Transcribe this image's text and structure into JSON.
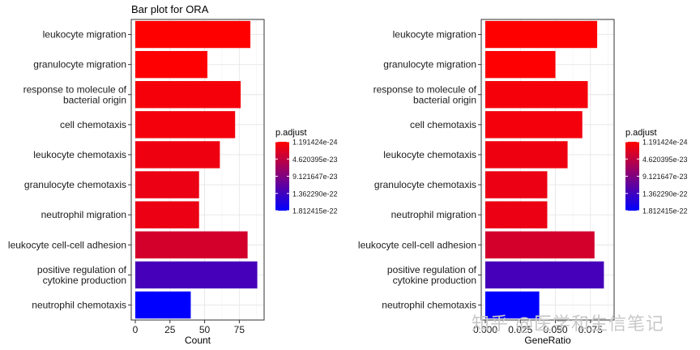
{
  "chart_data": [
    {
      "type": "bar",
      "orientation": "horizontal",
      "title": "Bar plot for ORA",
      "xlabel": "Count",
      "ylabel": "",
      "xlim": [
        0,
        90
      ],
      "xticks": [
        0,
        25,
        50,
        75
      ],
      "xtick_labels": [
        "0",
        "25",
        "50",
        "75"
      ],
      "categories": [
        "leukocyte migration",
        "granulocyte migration",
        "response to molecule of\nbacterial origin",
        "cell chemotaxis",
        "leukocyte chemotaxis",
        "granulocyte chemotaxis",
        "neutrophil migration",
        "leukocyte cell-cell adhesion",
        "positive regulation of\ncytokine production",
        "neutrophil chemotaxis"
      ],
      "values": [
        83,
        52,
        76,
        72,
        61,
        46,
        46,
        81,
        88,
        40
      ],
      "color_values": [
        1.191424e-24,
        2.1e-24,
        8e-24,
        9.5e-24,
        1.25e-23,
        1.5e-23,
        1.5e-23,
        3.2e-23,
        1.32e-22,
        1.812415e-22
      ],
      "legend": {
        "title": "p.adjust",
        "labels": [
          "1.191424e-24",
          "4.620395e-23",
          "9.121647e-23",
          "1.362290e-22",
          "1.812415e-22"
        ],
        "min": 1.191424e-24,
        "max": 1.812415e-22,
        "color_low": "#FF0000",
        "color_high": "#0000FF"
      },
      "grid": true
    },
    {
      "type": "bar",
      "orientation": "horizontal",
      "title": "",
      "xlabel": "GeneRatio",
      "ylabel": "",
      "xlim": [
        0,
        0.089
      ],
      "xticks": [
        0,
        0.025,
        0.05,
        0.075
      ],
      "xtick_labels": [
        "0.000",
        "0.025",
        "0.050",
        "0.075"
      ],
      "categories": [
        "leukocyte migration",
        "granulocyte migration",
        "response to molecule of\nbacterial origin",
        "cell chemotaxis",
        "leukocyte chemotaxis",
        "granulocyte chemotaxis",
        "neutrophil migration",
        "leukocyte cell-cell adhesion",
        "positive regulation of\ncytokine production",
        "neutrophil chemotaxis"
      ],
      "values": [
        0.0798,
        0.05,
        0.0731,
        0.0692,
        0.0587,
        0.0442,
        0.0442,
        0.0779,
        0.0846,
        0.0385
      ],
      "color_values": [
        1.191424e-24,
        2.1e-24,
        8e-24,
        9.5e-24,
        1.25e-23,
        1.5e-23,
        1.5e-23,
        3.2e-23,
        1.32e-22,
        1.812415e-22
      ],
      "legend": {
        "title": "p.adjust",
        "labels": [
          "1.191424e-24",
          "4.620395e-23",
          "9.121647e-23",
          "1.362290e-22",
          "1.812415e-22"
        ],
        "min": 1.191424e-24,
        "max": 1.812415e-22,
        "color_low": "#FF0000",
        "color_high": "#0000FF"
      },
      "grid": true
    }
  ],
  "watermark": "知乎 @医学和生信笔记"
}
